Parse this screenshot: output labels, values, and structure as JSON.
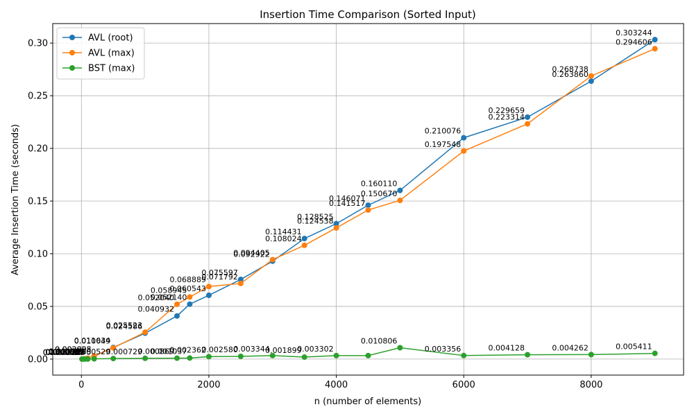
{
  "chart_data": {
    "type": "line",
    "title": "Insertion Time Comparison (Sorted Input)",
    "xlabel": "n (number of elements)",
    "ylabel": "Average Insertion Time (seconds)",
    "xlim": [
      -450,
      9450
    ],
    "ylim": [
      -0.0152,
      0.3185
    ],
    "x_ticks": [
      0,
      2000,
      4000,
      6000,
      8000
    ],
    "x_tick_labels": [
      "0",
      "2000",
      "4000",
      "6000",
      "8000"
    ],
    "y_ticks": [
      0.0,
      0.05,
      0.1,
      0.15,
      0.2,
      0.25,
      0.3
    ],
    "y_tick_labels": [
      "0.00",
      "0.05",
      "0.10",
      "0.15",
      "0.20",
      "0.25",
      "0.30"
    ],
    "grid": true,
    "legend_position": "top-left",
    "x": [
      10,
      50,
      100,
      200,
      500,
      1000,
      1500,
      1700,
      2000,
      2500,
      3000,
      3500,
      4000,
      4500,
      5000,
      6000,
      7000,
      8000,
      9000
    ],
    "series": [
      {
        "name": "AVL (root)",
        "color": "#1f77b4",
        "values": [
          6e-05,
          0.000283,
          0.000752,
          0.002825,
          0.011034,
          0.024586,
          0.040932,
          0.05214,
          0.060543,
          0.075597,
          0.092922,
          0.114431,
          0.128525,
          0.146071,
          0.16011,
          0.210076,
          0.229659,
          0.26386,
          0.303244
        ],
        "labels": [
          "0.000060",
          "0.000283",
          "0.000752",
          "0.002825",
          "0.011034",
          "0.024586",
          "0.040932",
          "0.052140",
          "0.060543",
          "0.075597",
          "0.092922",
          "0.114431",
          "0.128525",
          "0.146071",
          "0.160110",
          "0.210076",
          "0.229659",
          "0.263860",
          "0.303244"
        ]
      },
      {
        "name": "AVL (max)",
        "color": "#ff7f0e",
        "values": [
          6.1e-05,
          0.000291,
          0.000786,
          0.002903,
          0.010649,
          0.025523,
          0.05204,
          0.058945,
          0.068889,
          0.071792,
          0.094405,
          0.108024,
          0.124538,
          0.141517,
          0.15067,
          0.197548,
          0.223314,
          0.268738,
          0.294606
        ],
        "labels": [
          "0.000061",
          "0.000291",
          "0.000786",
          "0.002903",
          "0.010649",
          "0.025523",
          "0.052040",
          "0.058945",
          "0.068889",
          "0.071792",
          "0.094405",
          "0.108024",
          "0.124538",
          "0.141517",
          "0.150670",
          "0.197548",
          "0.223314",
          "0.268738",
          "0.294606"
        ]
      },
      {
        "name": "BST (max)",
        "color": "#2ca02c",
        "values": [
          5e-06,
          2e-05,
          3.9e-05,
          0.000255,
          0.000529,
          0.000729,
          0.000869,
          0.001037,
          0.002362,
          0.00258,
          0.003344,
          0.001899,
          0.003302,
          0.003302,
          0.010806,
          0.003356,
          0.004128,
          0.004262,
          0.005411
        ],
        "labels": [
          "0.000005",
          "0.000020",
          "0.000039",
          "0.000255",
          "0.000529",
          "0.000729",
          "0.000869",
          "0.001037",
          "0.002362",
          "0.002580",
          "0.003344",
          "0.001899",
          "0.003302",
          "",
          "0.010806",
          "0.003356",
          "0.004128",
          "0.004262",
          "0.005411"
        ]
      }
    ]
  }
}
